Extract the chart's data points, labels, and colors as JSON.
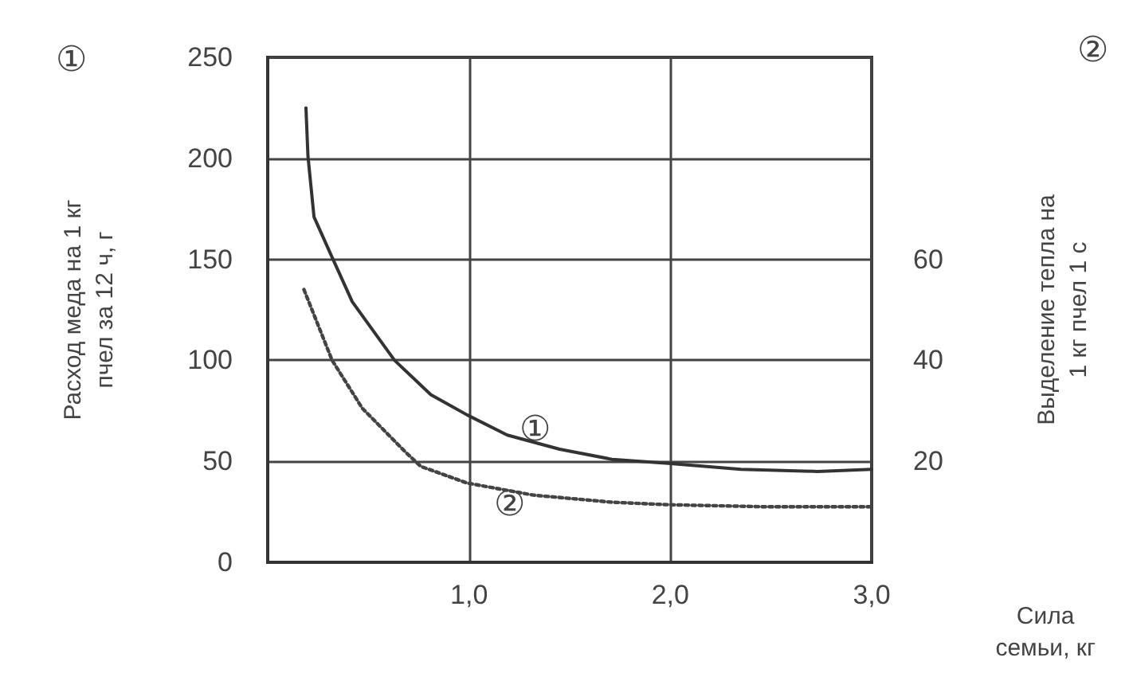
{
  "chart_data": {
    "type": "line",
    "xlabel": "Сила\nсемьи, кг",
    "ylabel": "Расход меда на 1 кг\nпчел за 12 ч, г",
    "y2label": "Выделение тепла на\n1 кг пчел 1 с",
    "x": [
      0.19,
      0.2,
      0.23,
      0.32,
      0.42,
      0.63,
      0.81,
      0.99,
      1.19,
      1.45,
      1.71,
      1.99,
      2.35,
      2.73,
      3.0
    ],
    "series": [
      {
        "color": "#333333",
        "line_style": "solid",
        "values": [
          225,
          201,
          171,
          151,
          129,
          100,
          83,
          73,
          63,
          56,
          51,
          49,
          46,
          45,
          46
        ]
      },
      {
        "color": "#444444",
        "line_style": "dotted",
        "axis": "y2",
        "x": [
          0.18,
          0.32,
          0.47,
          0.68,
          0.76,
          0.99,
          1.32,
          1.71,
          1.99,
          2.47,
          3.0
        ],
        "values": [
          54,
          40,
          30.5,
          22,
          19,
          15.7,
          13.3,
          11.9,
          11.4,
          11,
          11
        ]
      }
    ],
    "annotations": [
      "①",
      "②",
      "①",
      "②"
    ],
    "xlim": [
      0,
      3.0
    ],
    "xticks": [
      {
        "value": 0,
        "label": null
      },
      {
        "value": 1,
        "label": "1,0"
      },
      {
        "value": 2,
        "label": "2,0"
      },
      {
        "value": 3,
        "label": "3,0"
      }
    ],
    "ylim": [
      0,
      250
    ],
    "yticks": [
      0,
      50,
      100,
      150,
      200,
      250
    ],
    "y2lim": [
      0,
      100
    ],
    "y2ticks": [
      20,
      40,
      60
    ],
    "grid": true,
    "marker": "none"
  }
}
